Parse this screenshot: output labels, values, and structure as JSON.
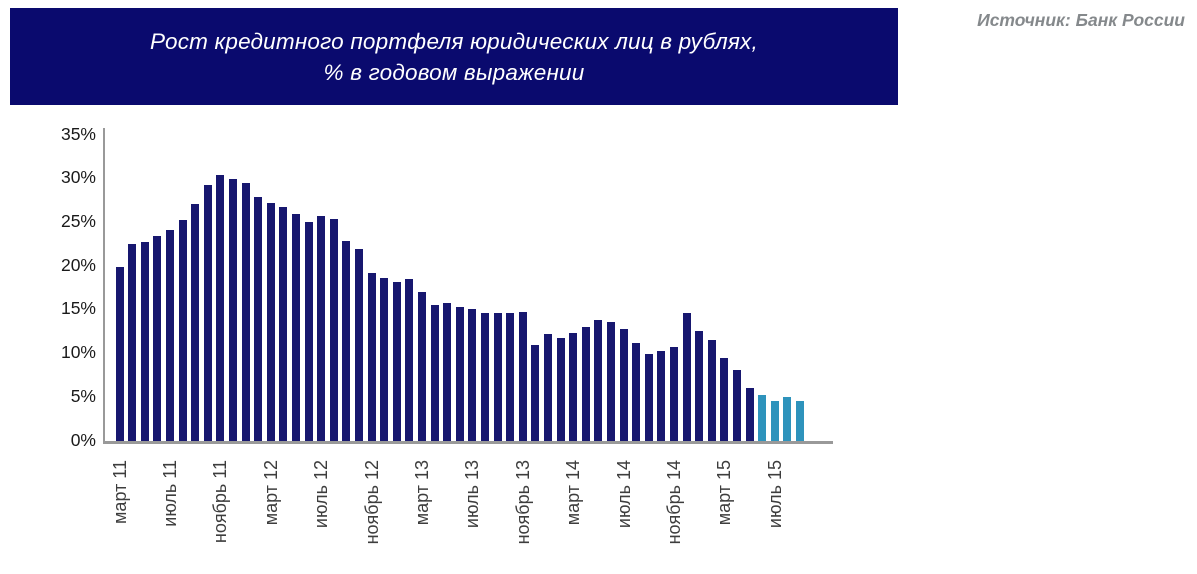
{
  "header": {
    "title_line1": "Рост кредитного портфеля юридических лиц в рублях,",
    "title_line2": "% в годовом выражении",
    "bg_color": "#0A0A6E",
    "text_color": "#FFFFFF"
  },
  "source": {
    "label": "Источник: Банк России",
    "color": "#85898C"
  },
  "chart_data": {
    "type": "bar",
    "title": "Рост кредитного портфеля юридических лиц в рублях, % в годовом выражении",
    "xlabel": "",
    "ylabel": "",
    "ylim": [
      0,
      35
    ],
    "ytick_step": 5,
    "ytick_labels": [
      "0%",
      "5%",
      "10%",
      "15%",
      "20%",
      "25%",
      "30%",
      "35%"
    ],
    "grid": false,
    "legend": "none",
    "bar_color": "#17176F",
    "highlight_color": "#2E93BC",
    "highlight_last_n": 4,
    "axis_color": "#999999",
    "values": [
      19.9,
      22.5,
      22.8,
      23.5,
      24.1,
      25.3,
      27.1,
      29.3,
      30.4,
      30.0,
      29.5,
      27.9,
      27.2,
      26.8,
      26.0,
      25.1,
      25.7,
      25.4,
      22.9,
      22.0,
      19.2,
      18.6,
      18.2,
      18.5,
      17.1,
      15.6,
      15.8,
      15.3,
      15.1,
      14.6,
      14.7,
      14.6,
      14.8,
      11.0,
      12.2,
      11.8,
      12.4,
      13.1,
      13.9,
      13.6,
      12.8,
      11.2,
      10.0,
      10.3,
      10.7,
      14.7,
      12.6,
      11.5,
      9.5,
      8.1,
      6.1,
      5.3,
      4.6,
      5.0,
      4.6
    ],
    "xtick_every_n_bars": 4,
    "xtick_start_index": 0,
    "xtick_labels": [
      "март 11",
      "июль 11",
      "ноябрь 11",
      "март 12",
      "июль 12",
      "ноябрь 12",
      "март 13",
      "июль 13",
      "ноябрь 13",
      "март 14",
      "июль 14",
      "ноябрь 14",
      "март 15",
      "июль 15"
    ]
  }
}
